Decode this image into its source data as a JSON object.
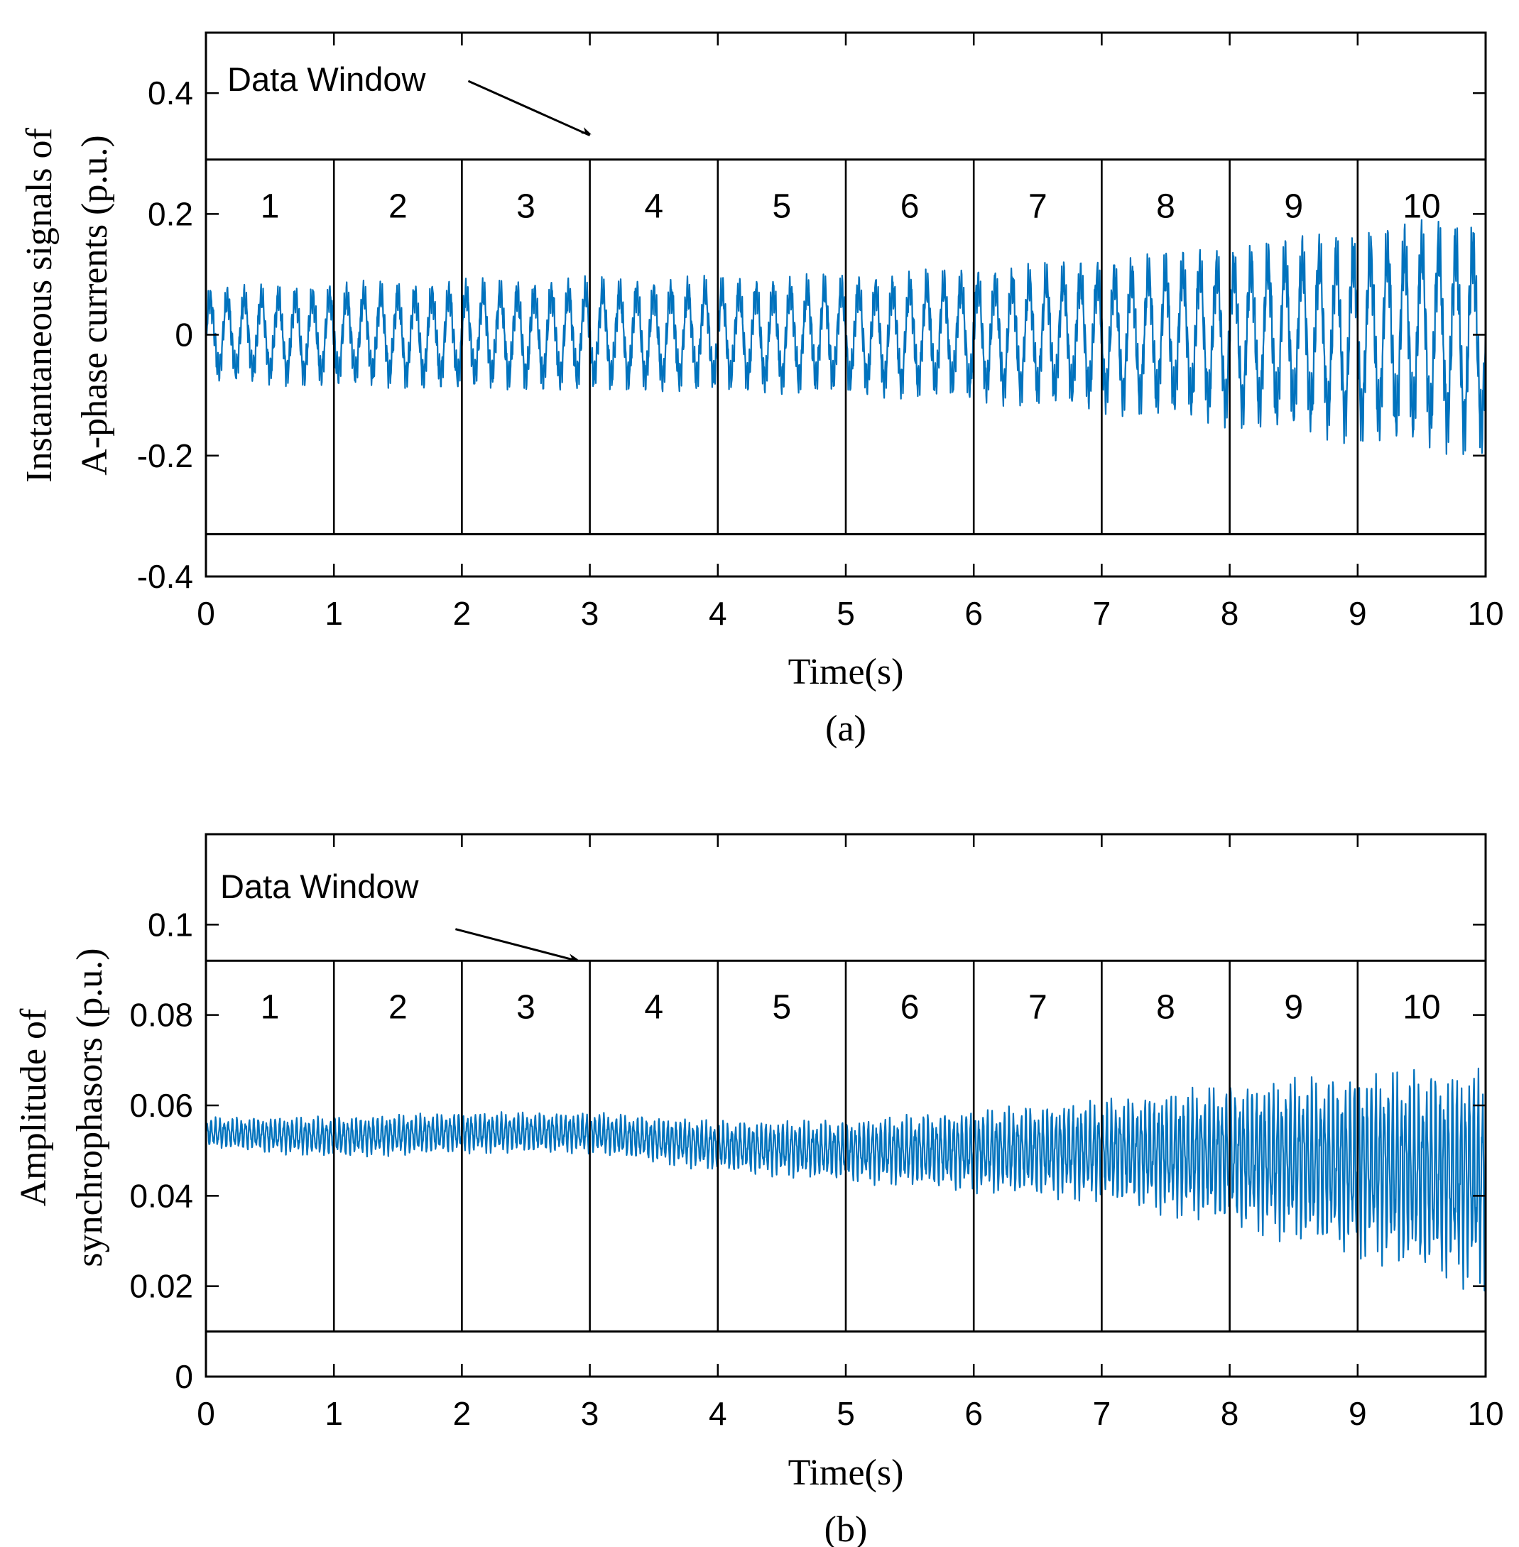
{
  "chart_data": [
    {
      "type": "line",
      "panel": "a",
      "caption": "(a)",
      "xlabel": "Time(s)",
      "ylabel_lines": [
        "Instantaneous signals of",
        "A-phase currents (p.u.)"
      ],
      "xlim": [
        0,
        10
      ],
      "ylim": [
        -0.4,
        0.5
      ],
      "xticks": [
        0,
        1,
        2,
        3,
        4,
        5,
        6,
        7,
        8,
        9,
        10
      ],
      "xtick_labels": [
        "0",
        "1",
        "2",
        "3",
        "4",
        "5",
        "6",
        "7",
        "8",
        "9",
        "10"
      ],
      "yticks": [
        -0.4,
        -0.2,
        0,
        0.2,
        0.4
      ],
      "ytick_labels": [
        "-0.4",
        "-0.2",
        "0",
        "0.2",
        "0.4"
      ],
      "annotation": {
        "text": "Data Window",
        "arrow_from": [
          2.05,
          0.42
        ],
        "arrow_to": [
          3.0,
          0.33
        ]
      },
      "window_band": {
        "ymin": -0.33,
        "ymax": 0.29
      },
      "windows": [
        {
          "label": "1",
          "x0": 0,
          "x1": 1
        },
        {
          "label": "2",
          "x0": 1,
          "x1": 2
        },
        {
          "label": "3",
          "x0": 2,
          "x1": 3
        },
        {
          "label": "4",
          "x0": 3,
          "x1": 4
        },
        {
          "label": "5",
          "x0": 4,
          "x1": 5
        },
        {
          "label": "6",
          "x0": 5,
          "x1": 6
        },
        {
          "label": "7",
          "x0": 6,
          "x1": 7
        },
        {
          "label": "8",
          "x0": 7,
          "x1": 8
        },
        {
          "label": "9",
          "x0": 8,
          "x1": 9
        },
        {
          "label": "10",
          "x0": 9,
          "x1": 10
        }
      ],
      "series": [
        {
          "name": "A-phase current",
          "color": "#0072BD",
          "kind": "oscillation",
          "osc_cycles_per_s": 7.5,
          "center": 0.0,
          "envelope_t": [
            0,
            1,
            2,
            3,
            4,
            5,
            6,
            7,
            8,
            9,
            10
          ],
          "envelope_amp": [
            0.072,
            0.078,
            0.082,
            0.085,
            0.086,
            0.09,
            0.1,
            0.115,
            0.135,
            0.16,
            0.18
          ]
        }
      ]
    },
    {
      "type": "line",
      "panel": "b",
      "caption": "(b)",
      "xlabel": "Time(s)",
      "ylabel_lines": [
        "Amplitude of",
        "synchrophasors (p.u.)"
      ],
      "xlim": [
        0,
        10
      ],
      "ylim": [
        0,
        0.12
      ],
      "xticks": [
        0,
        1,
        2,
        3,
        4,
        5,
        6,
        7,
        8,
        9,
        10
      ],
      "xtick_labels": [
        "0",
        "1",
        "2",
        "3",
        "4",
        "5",
        "6",
        "7",
        "8",
        "9",
        "10"
      ],
      "yticks": [
        0,
        0.02,
        0.04,
        0.06,
        0.08,
        0.1
      ],
      "ytick_labels": [
        "0",
        "0.02",
        "0.04",
        "0.06",
        "0.08",
        "0.1"
      ],
      "annotation": {
        "text": "Data Window",
        "arrow_from": [
          1.95,
          0.099
        ],
        "arrow_to": [
          2.9,
          0.092
        ]
      },
      "window_band": {
        "ymin": 0.01,
        "ymax": 0.092
      },
      "windows": [
        {
          "label": "1",
          "x0": 0,
          "x1": 1
        },
        {
          "label": "2",
          "x0": 1,
          "x1": 2
        },
        {
          "label": "3",
          "x0": 2,
          "x1": 3
        },
        {
          "label": "4",
          "x0": 3,
          "x1": 4
        },
        {
          "label": "5",
          "x0": 4,
          "x1": 5
        },
        {
          "label": "6",
          "x0": 5,
          "x1": 6
        },
        {
          "label": "7",
          "x0": 6,
          "x1": 7
        },
        {
          "label": "8",
          "x0": 7,
          "x1": 8
        },
        {
          "label": "9",
          "x0": 8,
          "x1": 9
        },
        {
          "label": "10",
          "x0": 9,
          "x1": 10
        }
      ],
      "series": [
        {
          "name": "Synchrophasor amplitude",
          "color": "#0072BD",
          "kind": "oscillation",
          "osc_cycles_per_s": 30,
          "center_t": [
            0,
            1,
            2,
            3,
            4,
            5,
            6,
            7,
            8,
            9,
            10
          ],
          "center": [
            0.054,
            0.053,
            0.054,
            0.054,
            0.051,
            0.05,
            0.05,
            0.05,
            0.049,
            0.047,
            0.044
          ],
          "envelope_t": [
            0,
            1,
            2,
            3,
            4,
            5,
            6,
            7,
            8,
            9,
            10
          ],
          "envelope_amp": [
            0.003,
            0.004,
            0.004,
            0.004,
            0.005,
            0.006,
            0.008,
            0.01,
            0.014,
            0.018,
            0.022
          ]
        }
      ]
    }
  ]
}
